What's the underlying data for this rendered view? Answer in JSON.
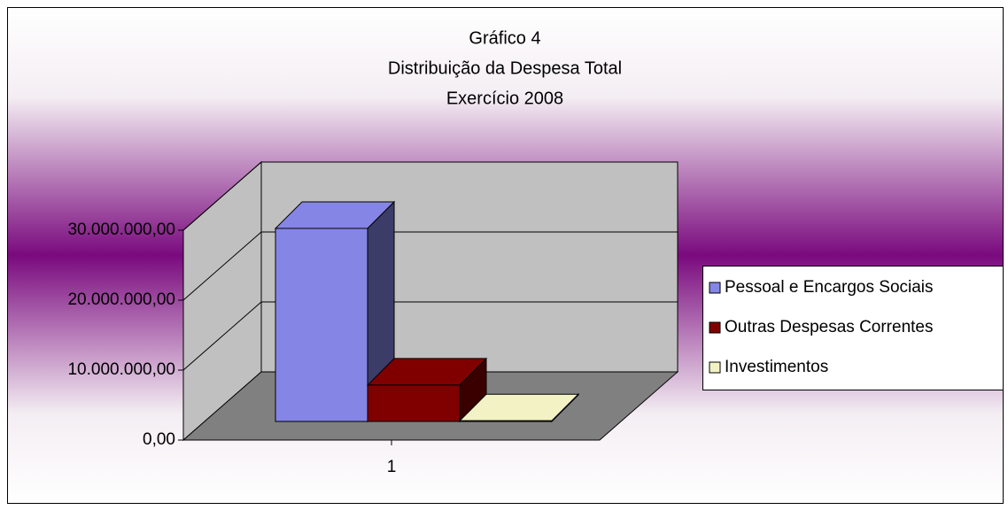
{
  "chart_data": {
    "type": "bar3d",
    "title_lines": [
      "Gráfico 4",
      "Distribuição da Despesa Total",
      "Exercício 2008"
    ],
    "categories": [
      "1"
    ],
    "series": [
      {
        "name": "Pessoal e Encargos Sociais",
        "color": "#8585e6",
        "values": [
          27600000
        ]
      },
      {
        "name": "Outras Despesas Correntes",
        "color": "#800000",
        "values": [
          5200000
        ]
      },
      {
        "name": "Investimentos",
        "color": "#f2f2c4",
        "values": [
          100000
        ]
      }
    ],
    "ylim": [
      0,
      30000000
    ],
    "yticks": [
      {
        "value": 0,
        "label": "0,00"
      },
      {
        "value": 10000000,
        "label": "10.000.000,00"
      },
      {
        "value": 20000000,
        "label": "20.000.000,00"
      },
      {
        "value": 30000000,
        "label": "30.000.000,00"
      }
    ],
    "grid": true,
    "legend": "right"
  }
}
